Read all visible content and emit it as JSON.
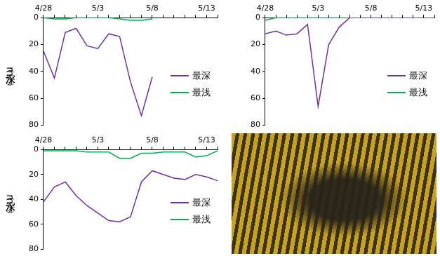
{
  "chart_data": [
    {
      "type": "line",
      "categories": [
        "4/28",
        null,
        null,
        null,
        null,
        "5/3",
        null,
        null,
        null,
        null,
        "5/8",
        null,
        null,
        null,
        null,
        "5/13",
        null
      ],
      "series": [
        {
          "name": "最深",
          "color": "#7030a0",
          "values": [
            25,
            45,
            11,
            8,
            21,
            23,
            12,
            14,
            48,
            73,
            44,
            null,
            null,
            null,
            null,
            null,
            null
          ]
        },
        {
          "name": "最浅",
          "color": "#00b050",
          "values": [
            0,
            1,
            1,
            0,
            0,
            0,
            0,
            1,
            2,
            2,
            1,
            null,
            null,
            null,
            null,
            null,
            null
          ]
        }
      ],
      "ylabel": "水深（m）",
      "ylim": [
        80,
        0
      ],
      "yticks": [
        0,
        20,
        40,
        60,
        80
      ],
      "grid": false,
      "legend": "right"
    },
    {
      "type": "line",
      "categories": [
        "4/28",
        null,
        null,
        null,
        null,
        "5/3",
        null,
        null,
        null,
        null,
        "5/8",
        null,
        null,
        null,
        null,
        "5/13",
        null
      ],
      "series": [
        {
          "name": "最深",
          "color": "#7030a0",
          "values": [
            12,
            10,
            13,
            12,
            5,
            66,
            20,
            7,
            0,
            0,
            0,
            0,
            0,
            0,
            0,
            0,
            0
          ]
        },
        {
          "name": "最浅",
          "color": "#00b050",
          "values": [
            2,
            0,
            0,
            0,
            0,
            0,
            0,
            0,
            0,
            0,
            0,
            0,
            0,
            0,
            0,
            0,
            0
          ]
        }
      ],
      "ylim": [
        80,
        0
      ],
      "yticks": [
        0,
        20,
        40,
        60,
        80
      ],
      "grid": false,
      "legend": "right"
    },
    {
      "type": "line",
      "categories": [
        "4/28",
        null,
        null,
        null,
        null,
        "5/3",
        null,
        null,
        null,
        null,
        "5/8",
        null,
        null,
        null,
        null,
        "5/13",
        null
      ],
      "series": [
        {
          "name": "最深",
          "color": "#7030a0",
          "values": [
            42,
            30,
            26,
            37,
            45,
            51,
            57,
            58,
            54,
            26,
            17,
            20,
            23,
            24,
            20,
            22,
            25
          ]
        },
        {
          "name": "最浅",
          "color": "#00b050",
          "values": [
            1,
            1,
            1,
            1,
            2,
            2,
            2,
            7,
            7,
            3,
            3,
            2,
            2,
            2,
            6,
            5,
            1
          ]
        }
      ],
      "ylabel": "水深（m）",
      "ylim": [
        80,
        0
      ],
      "yticks": [
        0,
        20,
        40,
        60,
        80
      ],
      "grid": false,
      "legend": "right"
    }
  ]
}
